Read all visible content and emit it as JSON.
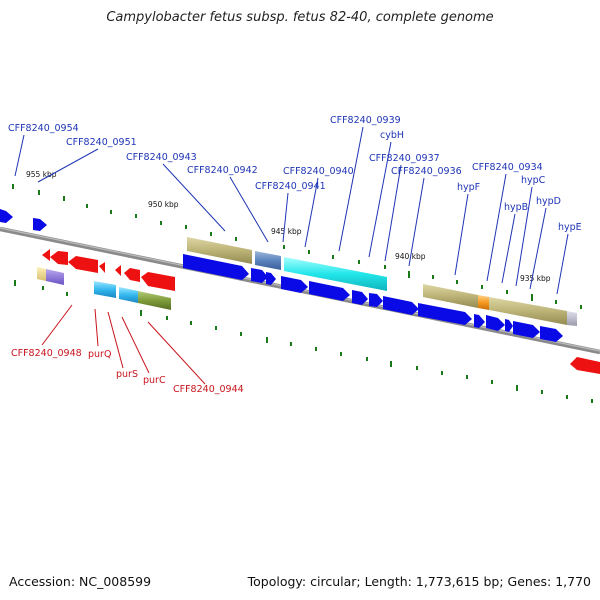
{
  "title": "Campylobacter fetus subsp. fetus 82-40, complete genome",
  "footer": {
    "accession": "Accession: NC_008599",
    "topology": "Topology: circular; Length: 1,773,615 bp; Genes: 1,770"
  },
  "ruler_labels": [
    "955 kbp",
    "950 kbp",
    "945 kbp",
    "940 kbp",
    "935 kbp"
  ],
  "top_labels": [
    "CFF8240_0954",
    "CFF8240_0951",
    "CFF8240_0943",
    "CFF8240_0942",
    "CFF8240_0941",
    "CFF8240_0940",
    "CFF8240_0939",
    "cybH",
    "CFF8240_0937",
    "CFF8240_0936",
    "hypF",
    "CFF8240_0934",
    "hypB",
    "hypC",
    "hypD",
    "hypE"
  ],
  "bottom_labels": [
    "CFF8240_0948",
    "purQ",
    "purS",
    "purC",
    "CFF8240_0944"
  ],
  "colors": {
    "backbone": "#7a7a7a",
    "forward_gene": "#0a0ae6",
    "reverse_gene": "#ee1111",
    "label_top": "#1f35b5",
    "label_bottom": "#c8141c",
    "tick": "#1a7a1a"
  }
}
